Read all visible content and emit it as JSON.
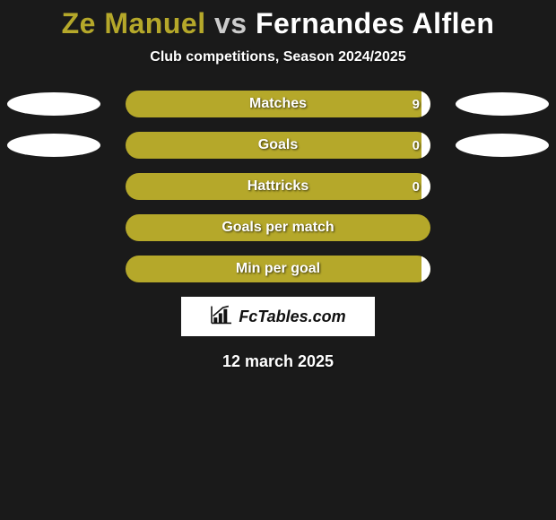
{
  "title": {
    "player1": "Ze Manuel",
    "vs": "vs",
    "player2": "Fernandes Alflen",
    "player1_color": "#b5a82a",
    "vs_color": "#cccccc",
    "player2_color": "#ffffff",
    "fontsize": 32
  },
  "subtitle": "Club competitions, Season 2024/2025",
  "background_color": "#1a1a1a",
  "stats": [
    {
      "label": "Matches",
      "value": "9",
      "left_ellipse": true,
      "right_ellipse": true,
      "fill_right_pct": 3
    },
    {
      "label": "Goals",
      "value": "0",
      "left_ellipse": true,
      "right_ellipse": true,
      "fill_right_pct": 3
    },
    {
      "label": "Hattricks",
      "value": "0",
      "left_ellipse": false,
      "right_ellipse": false,
      "fill_right_pct": 3
    },
    {
      "label": "Goals per match",
      "value": "",
      "left_ellipse": false,
      "right_ellipse": false,
      "fill_right_pct": 0
    },
    {
      "label": "Min per goal",
      "value": "",
      "left_ellipse": false,
      "right_ellipse": false,
      "fill_right_pct": 3
    }
  ],
  "bar_style": {
    "track_color": "#b5a82a",
    "fill_color": "#ffffff",
    "label_color": "#ffffff",
    "height": 30,
    "radius": 15
  },
  "ellipse_style": {
    "color": "#ffffff",
    "width": 104,
    "height": 26
  },
  "brand": {
    "text": "FcTables.com"
  },
  "date": "12 march 2025"
}
